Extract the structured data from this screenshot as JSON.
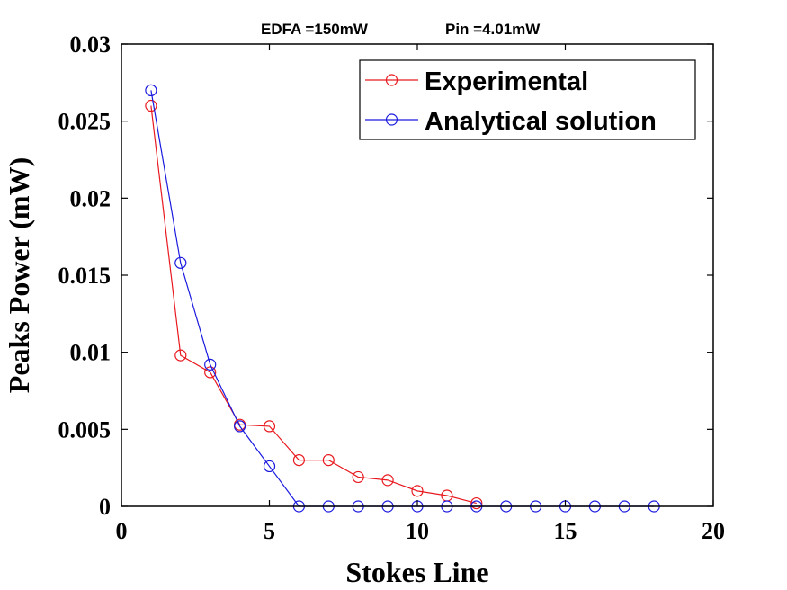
{
  "chart_data": {
    "type": "line",
    "title_parts": [
      "EDFA =150mW",
      "Pin =4.01mW"
    ],
    "xlabel": "Stokes Line",
    "ylabel": "Peaks Power (mW)",
    "xlim": [
      0,
      20
    ],
    "ylim": [
      0,
      0.03
    ],
    "xticks": [
      0,
      5,
      10,
      15,
      20
    ],
    "xtick_labels": [
      "0",
      "5",
      "10",
      "15",
      "20"
    ],
    "yticks": [
      0,
      0.005,
      0.01,
      0.015,
      0.02,
      0.025,
      0.03
    ],
    "ytick_labels": [
      "0",
      "0.005",
      "0.01",
      "0.015",
      "0.02",
      "0.025",
      "0.03"
    ],
    "grid": false,
    "legend_position": "top-right",
    "series": [
      {
        "name": "Experimental",
        "color": "#e8191f",
        "marker": "circle",
        "x": [
          1,
          2,
          3,
          4,
          5,
          6,
          7,
          8,
          9,
          10,
          11,
          12
        ],
        "y": [
          0.026,
          0.0098,
          0.0087,
          0.0053,
          0.0052,
          0.003,
          0.003,
          0.0019,
          0.0017,
          0.001,
          0.0007,
          0.0002
        ]
      },
      {
        "name": "Analytical solution",
        "color": "#1a1adf",
        "marker": "circle",
        "x": [
          1,
          2,
          3,
          4,
          5,
          6,
          7,
          8,
          9,
          10,
          11,
          12,
          13,
          14,
          15,
          16,
          17,
          18
        ],
        "y": [
          0.027,
          0.0158,
          0.0092,
          0.0052,
          0.0026,
          0,
          0,
          0,
          0,
          0,
          0,
          0,
          0,
          0,
          0,
          0,
          0,
          0
        ]
      }
    ]
  }
}
